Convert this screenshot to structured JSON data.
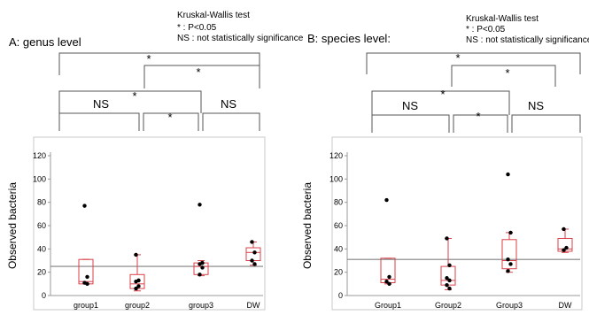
{
  "legend_text": {
    "line1": "Kruskal-Wallis test",
    "line2": "* : P<0.05",
    "line3": "NS : not statistically significance"
  },
  "colors": {
    "box": "#d9414a",
    "point": "#000000",
    "ref_line": "#808080",
    "frame": "#c8c8c8",
    "bracket": "#555555"
  },
  "chart_data": [
    {
      "type": "box",
      "title": "A: genus level",
      "ylabel": "Observed bacteria",
      "ylim": [
        0,
        120
      ],
      "yticks": [
        0,
        20,
        40,
        60,
        80,
        100,
        120
      ],
      "categories": [
        "group1",
        "group2",
        "group3",
        "DW"
      ],
      "reference_line": 25,
      "boxes": [
        {
          "q1": 10,
          "median": 12,
          "q3": 31,
          "low": 10,
          "high": 31
        },
        {
          "q1": 6,
          "median": 10,
          "q3": 18,
          "low": 4,
          "high": 35
        },
        {
          "q1": 18,
          "median": 25,
          "q3": 28,
          "low": 17,
          "high": 30
        },
        {
          "q1": 30,
          "median": 37,
          "q3": 41,
          "low": 26,
          "high": 46
        }
      ],
      "points": [
        [
          77,
          16,
          11,
          10
        ],
        [
          35,
          13,
          12,
          8,
          6
        ],
        [
          78,
          28,
          27,
          24,
          18
        ],
        [
          46,
          37,
          30,
          27
        ]
      ],
      "comparisons": [
        {
          "pair": [
            "group1",
            "DW"
          ],
          "label": "*"
        },
        {
          "pair": [
            "group2",
            "DW"
          ],
          "label": "*"
        },
        {
          "pair": [
            "group1",
            "group3"
          ],
          "label": "*"
        },
        {
          "pair": [
            "group1",
            "group2"
          ],
          "label": "NS"
        },
        {
          "pair": [
            "group2",
            "group3"
          ],
          "label": "*"
        },
        {
          "pair": [
            "group3",
            "DW"
          ],
          "label": "NS"
        }
      ]
    },
    {
      "type": "box",
      "title": "B: species level:",
      "ylabel": "Observed bacteria",
      "ylim": [
        0,
        120
      ],
      "yticks": [
        0,
        20,
        40,
        60,
        80,
        100,
        120
      ],
      "categories": [
        "Group1",
        "Group2",
        "Group3",
        "DW"
      ],
      "reference_line": 31,
      "boxes": [
        {
          "q1": 11,
          "median": 14,
          "q3": 32,
          "low": 10,
          "high": 32
        },
        {
          "q1": 9,
          "median": 13,
          "q3": 25,
          "low": 5,
          "high": 49
        },
        {
          "q1": 23,
          "median": 30,
          "q3": 48,
          "low": 20,
          "high": 54
        },
        {
          "q1": 38,
          "median": 40,
          "q3": 49,
          "low": 37,
          "high": 57
        }
      ],
      "points": [
        [
          82,
          16,
          12,
          10
        ],
        [
          49,
          26,
          15,
          13,
          9,
          6
        ],
        [
          104,
          54,
          31,
          27,
          21
        ],
        [
          57,
          41,
          39
        ]
      ],
      "comparisons": [
        {
          "pair": [
            "Group1",
            "DW"
          ],
          "label": "*"
        },
        {
          "pair": [
            "Group2",
            "DW"
          ],
          "label": "*"
        },
        {
          "pair": [
            "Group1",
            "Group3"
          ],
          "label": "*"
        },
        {
          "pair": [
            "Group1",
            "Group2"
          ],
          "label": "NS"
        },
        {
          "pair": [
            "Group2",
            "Group3"
          ],
          "label": "*"
        },
        {
          "pair": [
            "Group3",
            "DW"
          ],
          "label": "NS"
        }
      ]
    }
  ]
}
